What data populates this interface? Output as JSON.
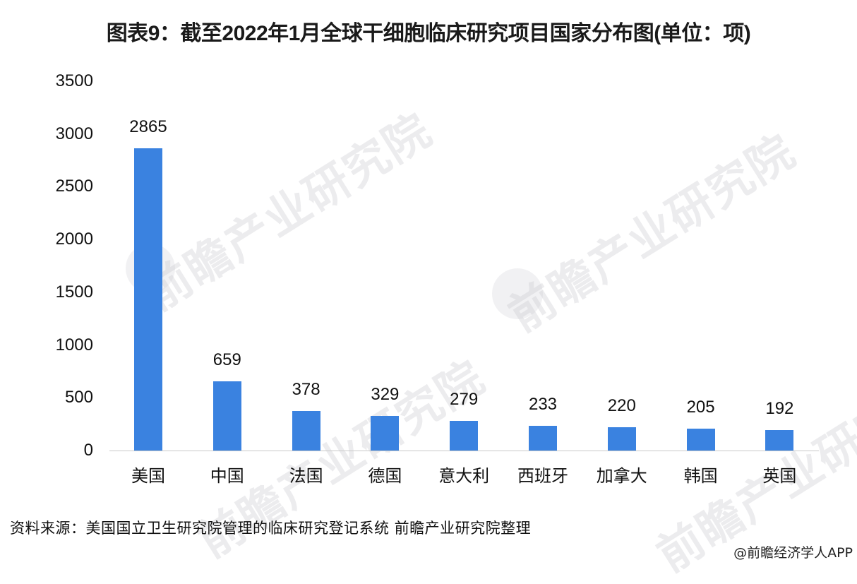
{
  "title": "图表9：截至2022年1月全球干细胞临床研究项目国家分布图(单位：项)",
  "watermark_text": "前瞻产业研究院",
  "footer": {
    "source": "资料来源：美国国立卫生研究院管理的临床研究登记系统 前瞻产业研究院整理",
    "credit": "@前瞻经济学人APP"
  },
  "colors": {
    "bar": "#3a82e0",
    "axis": "#c8c8c8"
  },
  "chart_data": {
    "type": "bar",
    "title": "图表9：截至2022年1月全球干细胞临床研究项目国家分布图(单位：项)",
    "xlabel": "",
    "ylabel": "",
    "categories": [
      "美国",
      "中国",
      "法国",
      "德国",
      "意大利",
      "西班牙",
      "加拿大",
      "韩国",
      "英国"
    ],
    "values": [
      2865,
      659,
      378,
      329,
      279,
      233,
      220,
      205,
      192
    ],
    "ylim": [
      0,
      3500
    ],
    "yticks": [
      "0",
      "500",
      "1000",
      "1500",
      "2000",
      "2500",
      "3000",
      "3500"
    ],
    "grid": false,
    "legend": null,
    "data_labels": true
  }
}
